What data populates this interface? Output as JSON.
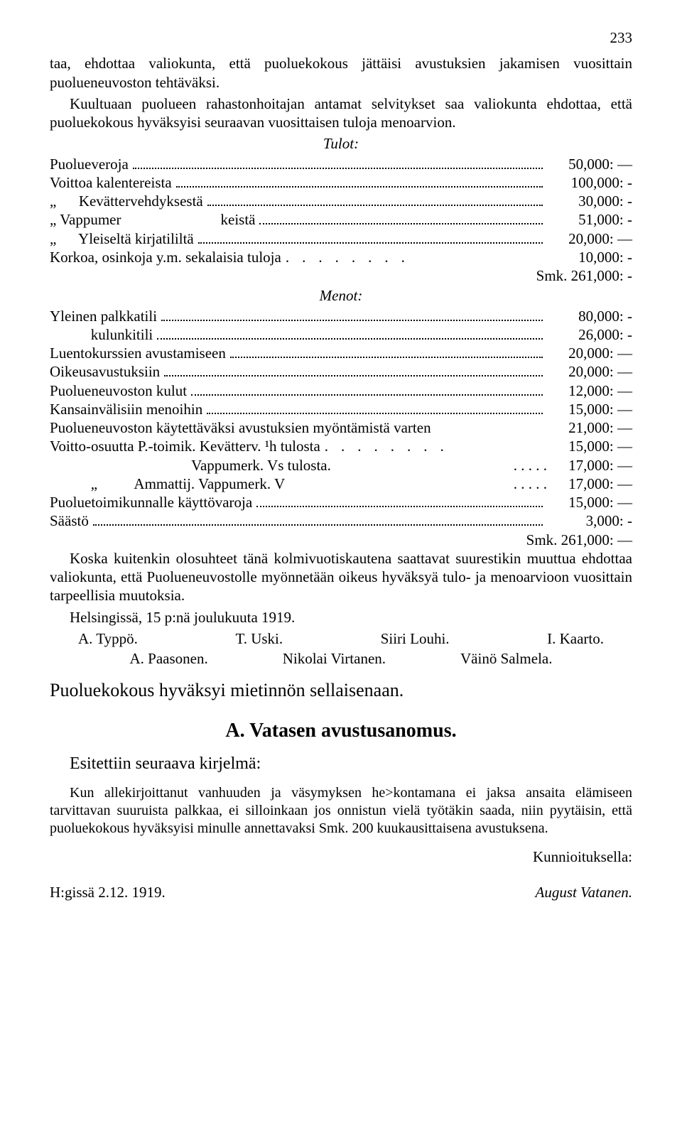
{
  "pageNumber": "233",
  "intro": "taa, ehdottaa valiokunta, että puoluekokous jättäisi avustuksien jakamisen vuosittain puolueneuvoston tehtäväksi.",
  "intro2": "Kuultuaan puolueen rahastonhoitajan antamat selvitykset saa valiokunta ehdottaa, että puoluekokous hyväksyisi seuraavan vuosittaisen tuloja menoarvion.",
  "tulot_heading": "Tulot:",
  "tulot": [
    {
      "label": "Puolueveroja",
      "amount": "50,000: —"
    },
    {
      "label": "Voittoa kalentereista",
      "amount": "100,000: -"
    },
    {
      "label": "„      Kevättervehdyksestä",
      "amount": "30,000: -"
    },
    {
      "label_a": "„                       Vappumer",
      "label_b": "keistä",
      "amount": "51,000: -"
    },
    {
      "label": "„      Yleiseltä kirjatililtä",
      "amount": "20,000: —"
    },
    {
      "label": "Korkoa, osinkoja y.m. sekalaisia tuloja",
      "amount": "10,000:  -",
      "spaced": true
    }
  ],
  "tulot_sum": "Smk.   261,000: -",
  "menot_heading": "Menot:",
  "menot": [
    {
      "label": "Yleinen palkkatili",
      "amount": "80,000:  -"
    },
    {
      "label": "           kulunkitili",
      "amount": "26,000:  -"
    },
    {
      "label": "Luentokurssien avustamiseen",
      "amount": "20,000: —"
    },
    {
      "label": "Oikeusavustuksiin",
      "amount": "20,000: —"
    },
    {
      "label": "Puolueneuvoston kulut",
      "amount": "12,000: —"
    },
    {
      "label": "Kansainvälisiin menoihin",
      "amount": "15,000: —"
    },
    {
      "label": "Puolueneuvoston käytettäväksi avustuksien myöntämistä varten",
      "amount": "21,000: —",
      "nodots": true
    },
    {
      "label": "Voitto-osuutta P.-toimik. Kevätterv. ¹h tulosta",
      "amount": "15,000: —",
      "spaced": true
    },
    {
      "label": "                                      Vappumerk. Vs tulosta.",
      "amount": "17,000: —",
      "shortdots": true
    },
    {
      "label": "           „          Ammattij. Vappumerk. V",
      "amount": "17,000: —",
      "shortdots": true
    },
    {
      "label": "Puoluetoimikunnalle käyttövaroja",
      "amount": "15,000: —"
    },
    {
      "label": "Säästö",
      "amount": "3,000:  -"
    }
  ],
  "menot_sum": "Smk. 261,000: —",
  "tail_para": "Koska kuitenkin olosuhteet tänä kolmivuotiskautena saattavat suurestikin muuttua ehdottaa valiokunta, että Puolueneuvostolle myönnetään oikeus hyväksyä tulo- ja menoarvioon vuosittain tarpeellisia muutoksia.",
  "place_date": "Helsingissä, 15 p:nä joulukuuta 1919.",
  "sigs1": [
    "A. Typpö.",
    "T. Uski.",
    "Siiri Louhi.",
    "I. Kaarto."
  ],
  "sigs2": [
    "A. Paasonen.",
    "Nikolai Virtanen.",
    "Väinö Salmela."
  ],
  "approval": "Puoluekokous hyväksyi mietinnön sellaisenaan.",
  "section_title": "A. Vatasen avustusanomus.",
  "esitettiin": "Esitettiin seuraava kirjelmä:",
  "letter": "Kun allekirjoittanut vanhuuden ja väsymyksen he>kontamana ei jaksa ansaita elämiseen tarvittavan suuruista palkkaa, ei silloinkaan jos onnistun vielä työtäkin saada, niin pyytäisin, että puoluekokous hyväksyisi minulle annettavaksi Smk. 200 kuukausittaisena avustuksena.",
  "kunnioituksella": "Kunnioituksella:",
  "letter_place": "H:gissä 2.12.  1919.",
  "letter_sign": "August   Vatanen."
}
